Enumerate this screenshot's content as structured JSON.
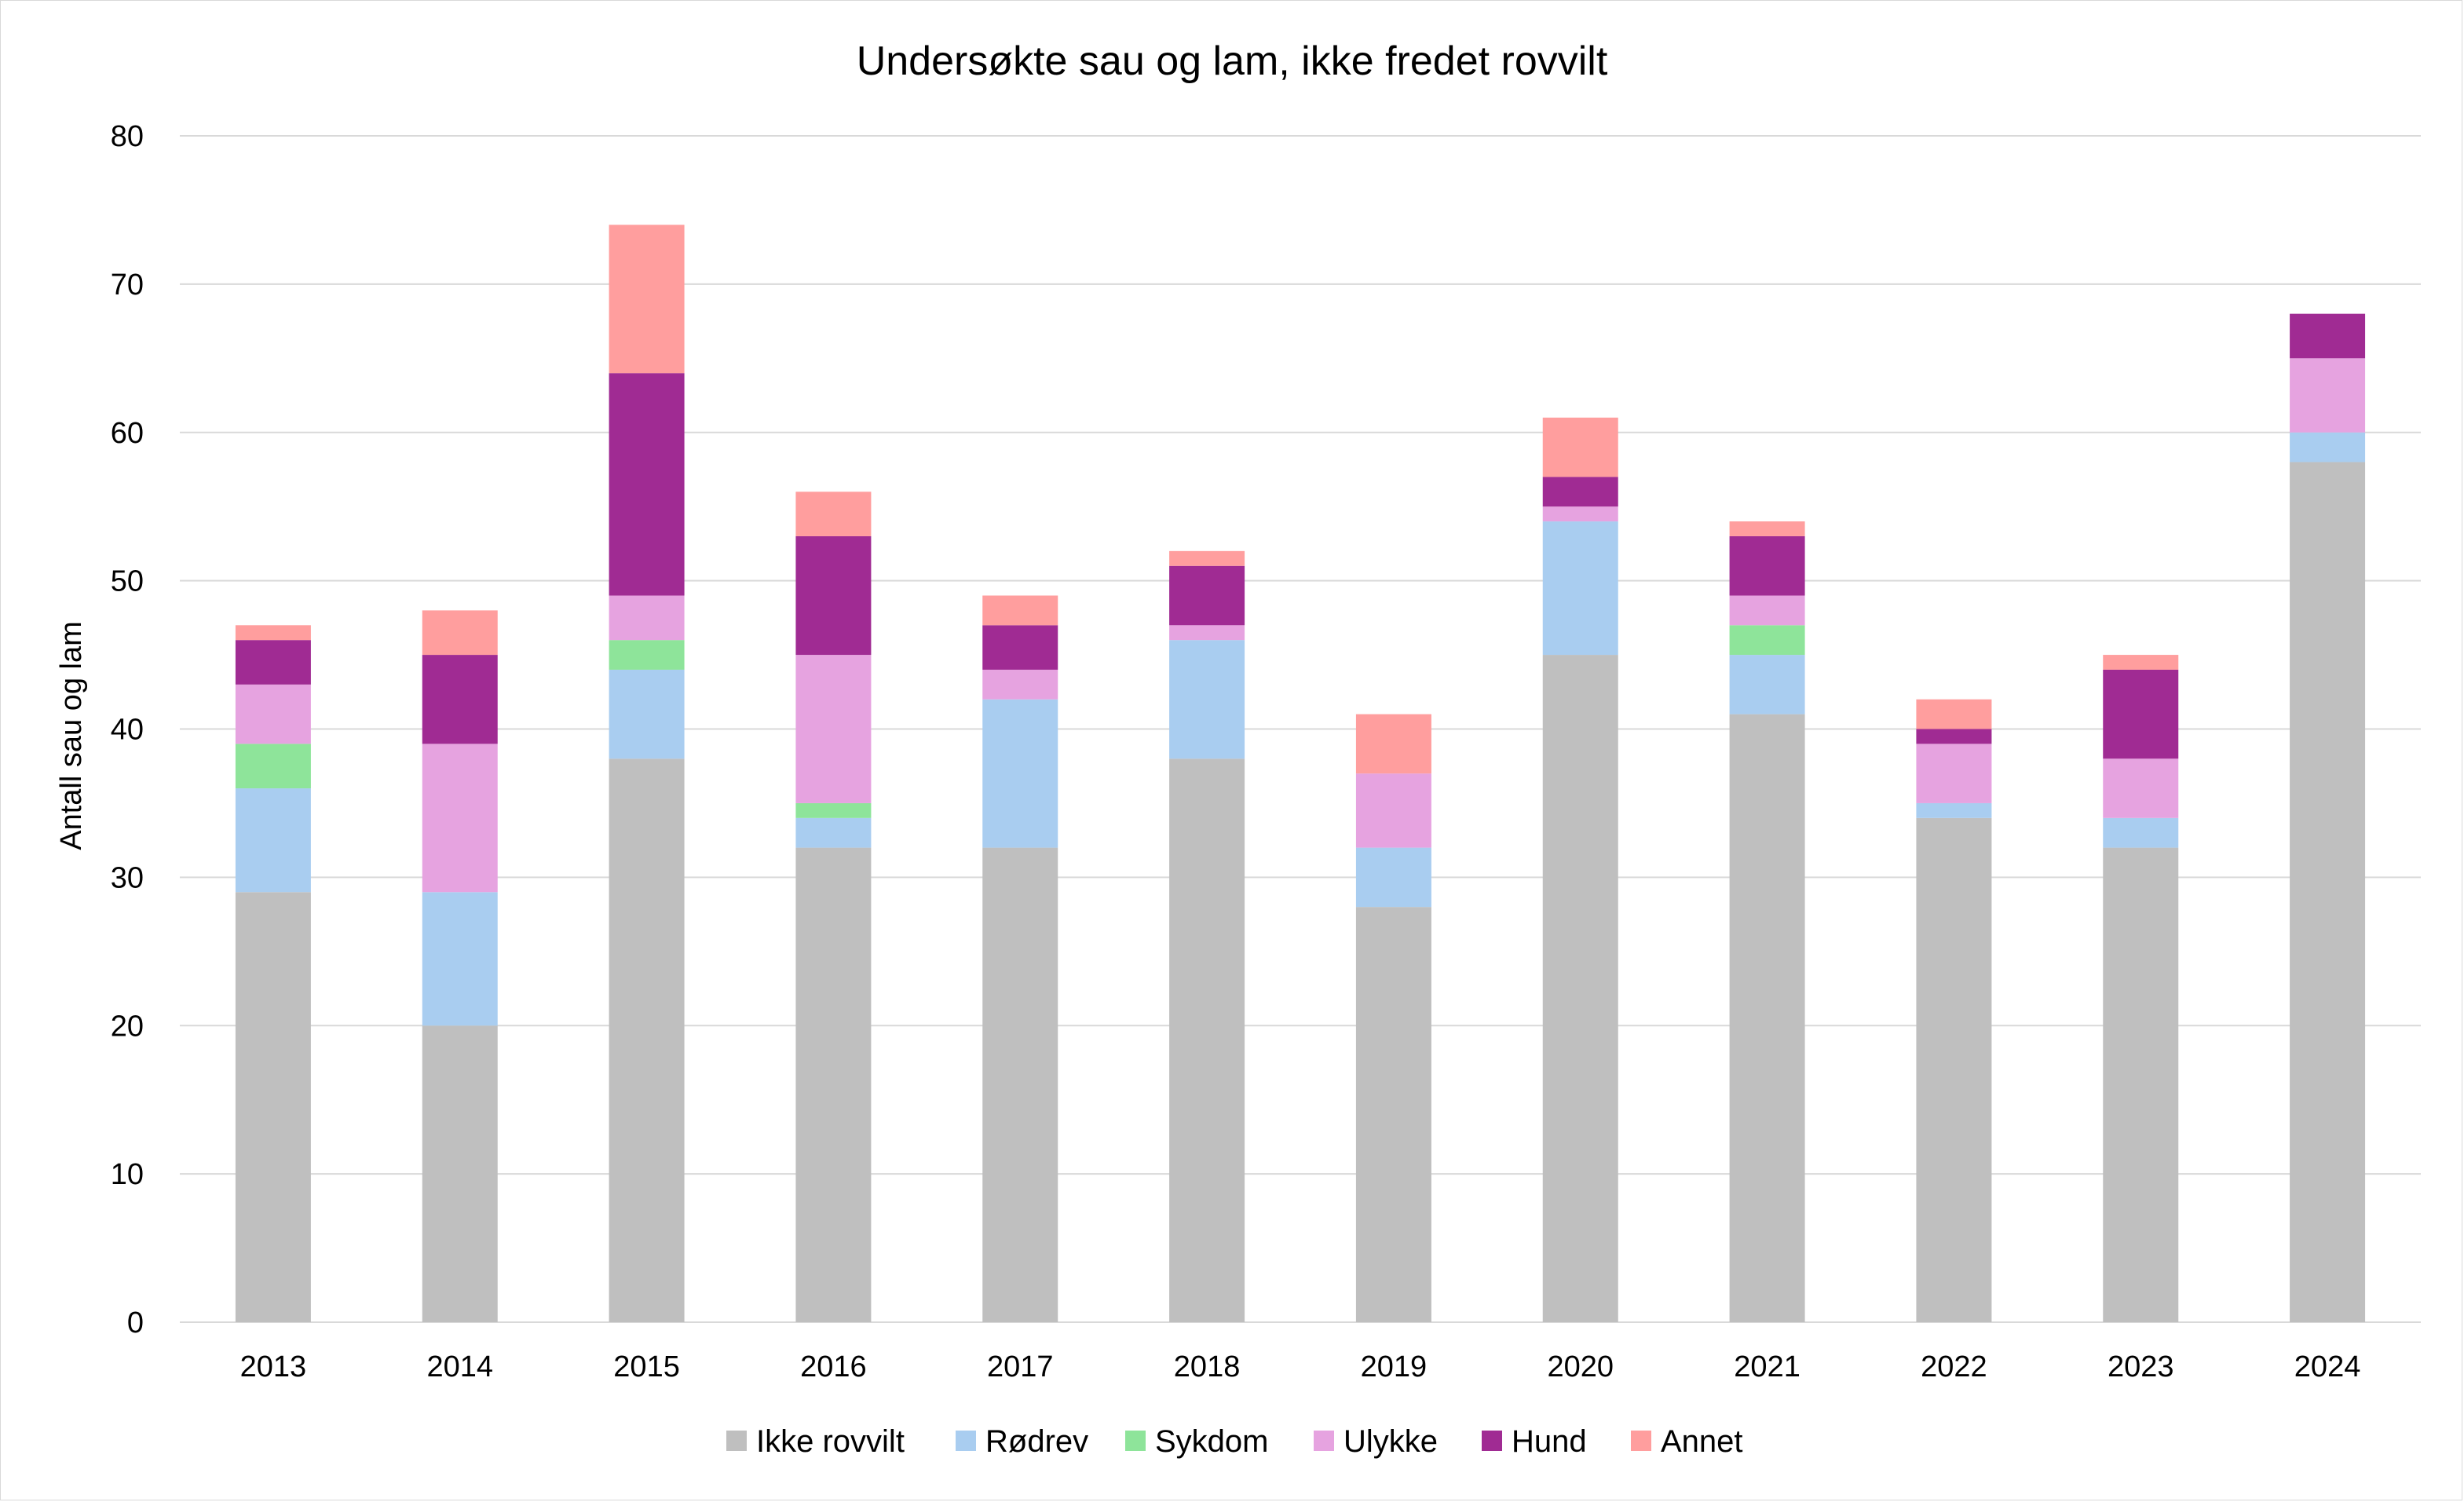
{
  "chart_data": {
    "type": "bar",
    "stacked": true,
    "title": "Undersøkte sau og lam, ikke fredet rovvilt",
    "xlabel": "",
    "ylabel": "Antall sau og lam",
    "ylim": [
      0,
      80
    ],
    "yticks": [
      0,
      10,
      20,
      30,
      40,
      50,
      60,
      70,
      80
    ],
    "grid": "horizontal",
    "legend_position": "bottom",
    "categories": [
      "2013",
      "2014",
      "2015",
      "2016",
      "2017",
      "2018",
      "2019",
      "2020",
      "2021",
      "2022",
      "2023",
      "2024"
    ],
    "series": [
      {
        "name": "Ikke rovvilt",
        "color": "#bfbfbf",
        "values": [
          29,
          20,
          38,
          32,
          32,
          38,
          28,
          45,
          41,
          34,
          32,
          58
        ]
      },
      {
        "name": "Rødrev",
        "color": "#a9cdf0",
        "values": [
          7,
          9,
          6,
          2,
          10,
          8,
          4,
          9,
          4,
          1,
          2,
          2
        ]
      },
      {
        "name": "Sykdom",
        "color": "#8ee49a",
        "values": [
          3,
          0,
          2,
          1,
          0,
          0,
          0,
          0,
          2,
          0,
          0,
          0
        ]
      },
      {
        "name": "Ulykke",
        "color": "#e6a3e0",
        "values": [
          4,
          10,
          3,
          10,
          2,
          1,
          5,
          1,
          2,
          4,
          4,
          5
        ]
      },
      {
        "name": "Hund",
        "color": "#a02b93",
        "values": [
          3,
          6,
          15,
          8,
          3,
          4,
          0,
          2,
          4,
          1,
          6,
          3
        ]
      },
      {
        "name": "Annet",
        "color": "#ff9e9e",
        "values": [
          1,
          3,
          10,
          3,
          2,
          1,
          4,
          4,
          1,
          2,
          1,
          0
        ]
      }
    ]
  }
}
